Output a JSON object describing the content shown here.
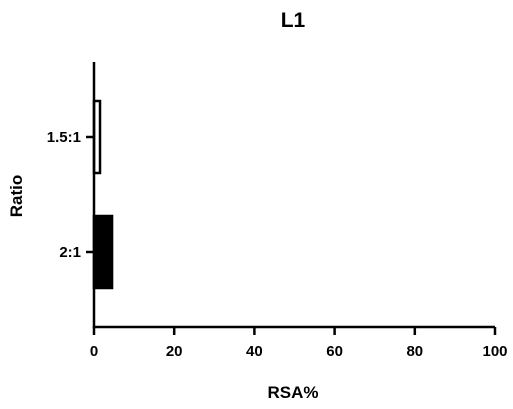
{
  "chart_data": {
    "type": "bar",
    "orientation": "horizontal",
    "title": "L1",
    "xlabel": "RSA%",
    "ylabel": "Ratio",
    "categories": [
      "1.5:1",
      "2:1"
    ],
    "series": [
      {
        "values": [
          1.5,
          4.5
        ]
      }
    ],
    "bar_styles": [
      {
        "fill": "#ffffff",
        "stroke": "#000000"
      },
      {
        "fill": "#000000",
        "stroke": "#000000"
      }
    ],
    "xlim": [
      0,
      100
    ],
    "xticks": [
      0,
      20,
      40,
      60,
      80,
      100
    ],
    "grid": false,
    "legend": "none"
  }
}
